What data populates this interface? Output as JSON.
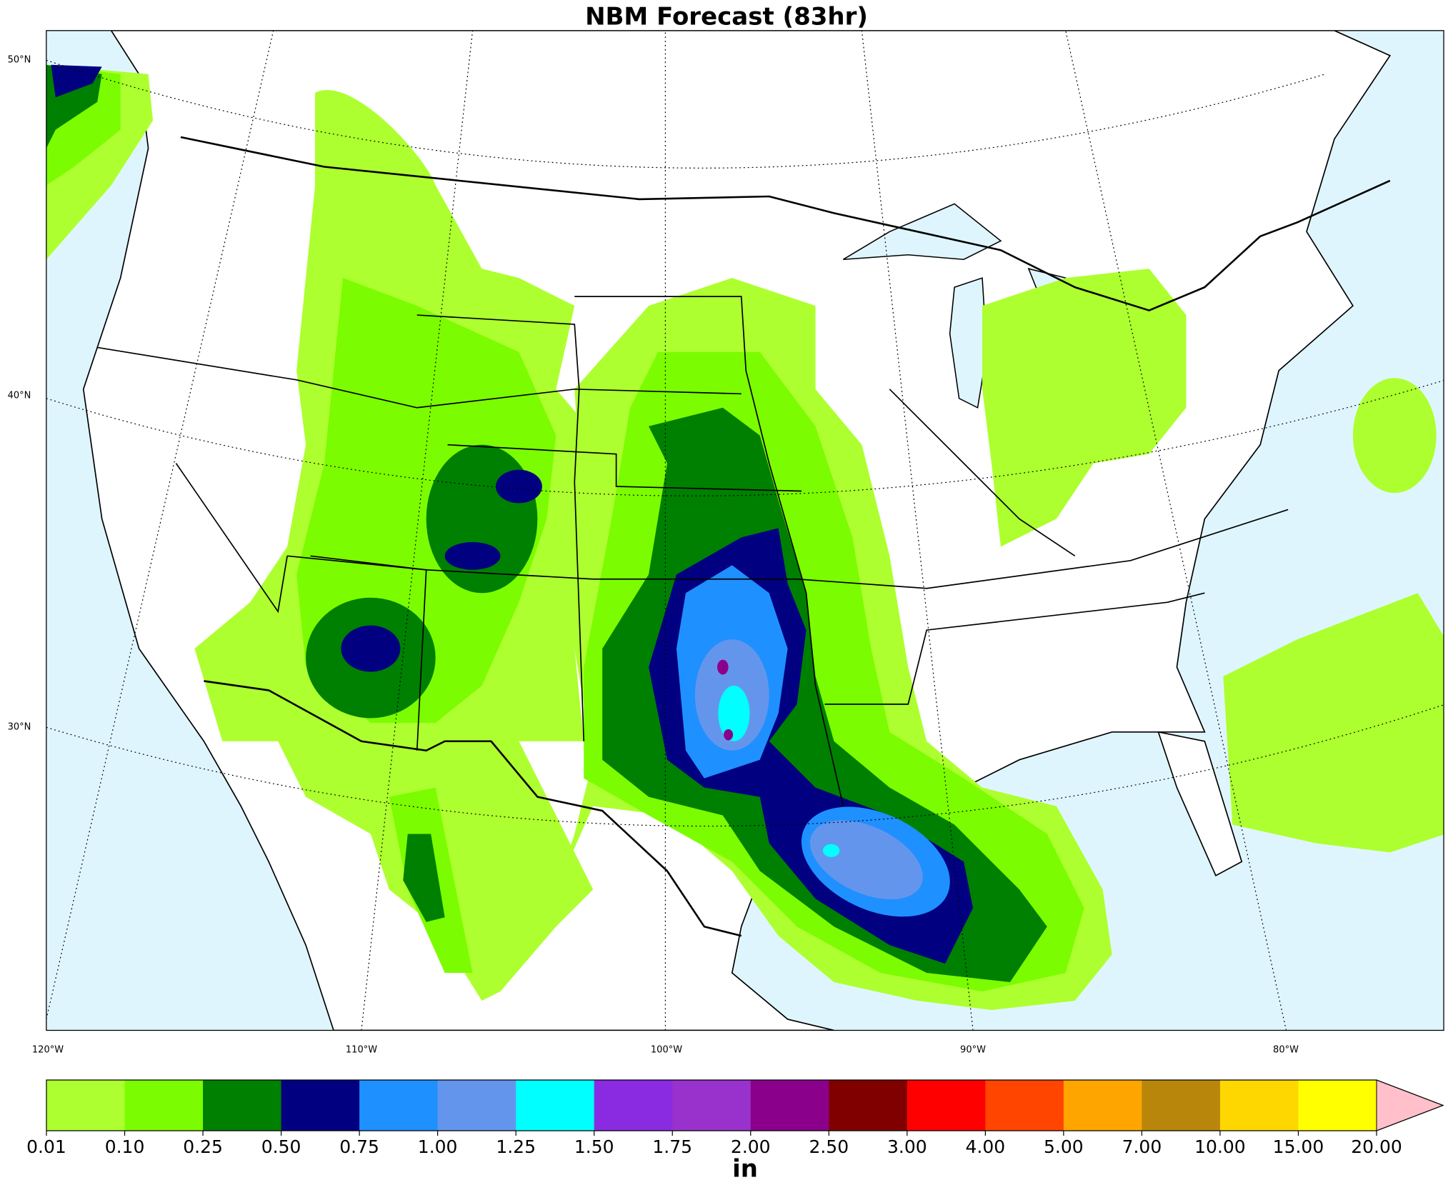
{
  "chart_data": {
    "type": "colorbar-map",
    "title": "NBM Forecast (83hr)",
    "lat_labels": [
      "50°N",
      "40°N",
      "30°N"
    ],
    "lon_labels": [
      "120°W",
      "110°W",
      "100°W",
      "90°W",
      "80°W"
    ],
    "levels": [
      {
        "value": 0.01,
        "label": "0.01"
      },
      {
        "value": 0.1,
        "label": "0.10"
      },
      {
        "value": 0.25,
        "label": "0.25"
      },
      {
        "value": 0.5,
        "label": "0.50"
      },
      {
        "value": 0.75,
        "label": "0.75"
      },
      {
        "value": 1,
        "label": "1.00"
      },
      {
        "value": 1.25,
        "label": "1.25"
      },
      {
        "value": 1.5,
        "label": "1.50"
      },
      {
        "value": 1.75,
        "label": "1.75"
      },
      {
        "value": 2,
        "label": "2.00"
      },
      {
        "value": 2.5,
        "label": "2.50"
      },
      {
        "value": 3,
        "label": "3.00"
      },
      {
        "value": 4,
        "label": "4.00"
      },
      {
        "value": 5,
        "label": "5.00"
      },
      {
        "value": 7,
        "label": "7.00"
      },
      {
        "value": 10,
        "label": "10.00"
      },
      {
        "value": 15,
        "label": "15.00"
      },
      {
        "value": 20,
        "label": "20.00"
      }
    ],
    "colors": [
      "#adff2f",
      "#7cfc00",
      "#008000",
      "#000080",
      "#1e90ff",
      "#6495ed",
      "#00ffff",
      "#8a2be2",
      "#9932cc",
      "#8b008b",
      "#800000",
      "#ff0000",
      "#ff4500",
      "#ffa500",
      "#b8860b",
      "#ffd700",
      "#ffff00"
    ],
    "extend_color": "#ffc0cb",
    "unit": "in"
  }
}
